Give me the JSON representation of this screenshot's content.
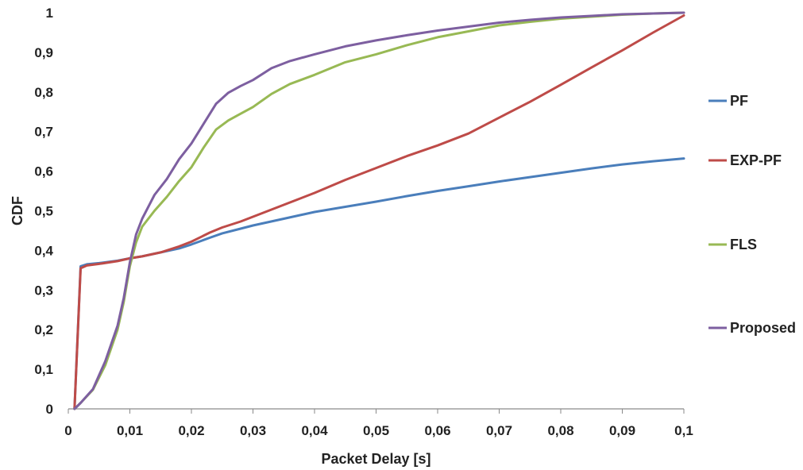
{
  "chart_data": {
    "type": "line",
    "xlabel": "Packet Delay [s]",
    "ylabel": "CDF",
    "xlim": [
      0,
      0.1
    ],
    "ylim": [
      0,
      1
    ],
    "xticks": [
      {
        "value": 0,
        "label": "0"
      },
      {
        "value": 0.01,
        "label": "0,01"
      },
      {
        "value": 0.02,
        "label": "0,02"
      },
      {
        "value": 0.03,
        "label": "0,03"
      },
      {
        "value": 0.04,
        "label": "0,04"
      },
      {
        "value": 0.05,
        "label": "0,05"
      },
      {
        "value": 0.06,
        "label": "0,06"
      },
      {
        "value": 0.07,
        "label": "0,07"
      },
      {
        "value": 0.08,
        "label": "0,08"
      },
      {
        "value": 0.09,
        "label": "0,09"
      },
      {
        "value": 0.1,
        "label": "0,1"
      }
    ],
    "yticks": [
      {
        "value": 0,
        "label": "0"
      },
      {
        "value": 0.1,
        "label": "0,1"
      },
      {
        "value": 0.2,
        "label": "0,2"
      },
      {
        "value": 0.3,
        "label": "0,3"
      },
      {
        "value": 0.4,
        "label": "0,4"
      },
      {
        "value": 0.5,
        "label": "0,5"
      },
      {
        "value": 0.6,
        "label": "0,6"
      },
      {
        "value": 0.7,
        "label": "0,7"
      },
      {
        "value": 0.8,
        "label": "0,8"
      },
      {
        "value": 0.9,
        "label": "0,9"
      },
      {
        "value": 1,
        "label": "1"
      }
    ],
    "grid": false,
    "legend": "right",
    "series": [
      {
        "name": "PF",
        "color": "#4a7ebb",
        "points": [
          [
            0.001,
            0
          ],
          [
            0.002,
            0.36
          ],
          [
            0.003,
            0.365
          ],
          [
            0.005,
            0.368
          ],
          [
            0.008,
            0.374
          ],
          [
            0.01,
            0.38
          ],
          [
            0.012,
            0.385
          ],
          [
            0.015,
            0.395
          ],
          [
            0.018,
            0.405
          ],
          [
            0.02,
            0.415
          ],
          [
            0.023,
            0.432
          ],
          [
            0.025,
            0.443
          ],
          [
            0.028,
            0.455
          ],
          [
            0.03,
            0.463
          ],
          [
            0.035,
            0.48
          ],
          [
            0.04,
            0.497
          ],
          [
            0.045,
            0.51
          ],
          [
            0.05,
            0.523
          ],
          [
            0.055,
            0.537
          ],
          [
            0.06,
            0.55
          ],
          [
            0.065,
            0.562
          ],
          [
            0.07,
            0.574
          ],
          [
            0.075,
            0.585
          ],
          [
            0.08,
            0.596
          ],
          [
            0.085,
            0.607
          ],
          [
            0.09,
            0.617
          ],
          [
            0.095,
            0.625
          ],
          [
            0.1,
            0.632
          ]
        ]
      },
      {
        "name": "EXP-PF",
        "color": "#be4b48",
        "points": [
          [
            0.001,
            0
          ],
          [
            0.002,
            0.355
          ],
          [
            0.003,
            0.362
          ],
          [
            0.005,
            0.366
          ],
          [
            0.008,
            0.373
          ],
          [
            0.01,
            0.38
          ],
          [
            0.012,
            0.385
          ],
          [
            0.015,
            0.395
          ],
          [
            0.018,
            0.41
          ],
          [
            0.02,
            0.422
          ],
          [
            0.023,
            0.445
          ],
          [
            0.025,
            0.458
          ],
          [
            0.028,
            0.473
          ],
          [
            0.03,
            0.485
          ],
          [
            0.035,
            0.515
          ],
          [
            0.04,
            0.545
          ],
          [
            0.045,
            0.578
          ],
          [
            0.05,
            0.608
          ],
          [
            0.055,
            0.638
          ],
          [
            0.06,
            0.665
          ],
          [
            0.065,
            0.695
          ],
          [
            0.07,
            0.735
          ],
          [
            0.075,
            0.775
          ],
          [
            0.08,
            0.818
          ],
          [
            0.085,
            0.862
          ],
          [
            0.09,
            0.905
          ],
          [
            0.095,
            0.95
          ],
          [
            0.1,
            0.993
          ]
        ]
      },
      {
        "name": "FLS",
        "color": "#98b954",
        "points": [
          [
            0.001,
            0
          ],
          [
            0.002,
            0.015
          ],
          [
            0.004,
            0.048
          ],
          [
            0.006,
            0.11
          ],
          [
            0.008,
            0.2
          ],
          [
            0.009,
            0.27
          ],
          [
            0.01,
            0.36
          ],
          [
            0.011,
            0.42
          ],
          [
            0.012,
            0.46
          ],
          [
            0.014,
            0.5
          ],
          [
            0.016,
            0.535
          ],
          [
            0.018,
            0.575
          ],
          [
            0.02,
            0.61
          ],
          [
            0.022,
            0.66
          ],
          [
            0.024,
            0.705
          ],
          [
            0.026,
            0.728
          ],
          [
            0.028,
            0.745
          ],
          [
            0.03,
            0.762
          ],
          [
            0.033,
            0.795
          ],
          [
            0.036,
            0.82
          ],
          [
            0.04,
            0.843
          ],
          [
            0.045,
            0.875
          ],
          [
            0.05,
            0.895
          ],
          [
            0.055,
            0.918
          ],
          [
            0.06,
            0.938
          ],
          [
            0.065,
            0.953
          ],
          [
            0.07,
            0.968
          ],
          [
            0.075,
            0.977
          ],
          [
            0.08,
            0.985
          ],
          [
            0.085,
            0.99
          ],
          [
            0.09,
            0.995
          ],
          [
            0.095,
            0.998
          ],
          [
            0.1,
            1.0
          ]
        ]
      },
      {
        "name": "Proposed",
        "color": "#7d5fa0",
        "points": [
          [
            0.001,
            0
          ],
          [
            0.002,
            0.015
          ],
          [
            0.004,
            0.05
          ],
          [
            0.006,
            0.12
          ],
          [
            0.008,
            0.21
          ],
          [
            0.009,
            0.28
          ],
          [
            0.01,
            0.37
          ],
          [
            0.011,
            0.44
          ],
          [
            0.012,
            0.48
          ],
          [
            0.014,
            0.54
          ],
          [
            0.016,
            0.58
          ],
          [
            0.018,
            0.63
          ],
          [
            0.02,
            0.67
          ],
          [
            0.022,
            0.72
          ],
          [
            0.024,
            0.77
          ],
          [
            0.026,
            0.798
          ],
          [
            0.028,
            0.815
          ],
          [
            0.03,
            0.83
          ],
          [
            0.033,
            0.86
          ],
          [
            0.036,
            0.878
          ],
          [
            0.04,
            0.895
          ],
          [
            0.045,
            0.915
          ],
          [
            0.05,
            0.93
          ],
          [
            0.055,
            0.943
          ],
          [
            0.06,
            0.955
          ],
          [
            0.065,
            0.965
          ],
          [
            0.07,
            0.975
          ],
          [
            0.075,
            0.982
          ],
          [
            0.08,
            0.988
          ],
          [
            0.085,
            0.992
          ],
          [
            0.09,
            0.996
          ],
          [
            0.095,
            0.998
          ],
          [
            0.1,
            1.0
          ]
        ]
      }
    ]
  }
}
